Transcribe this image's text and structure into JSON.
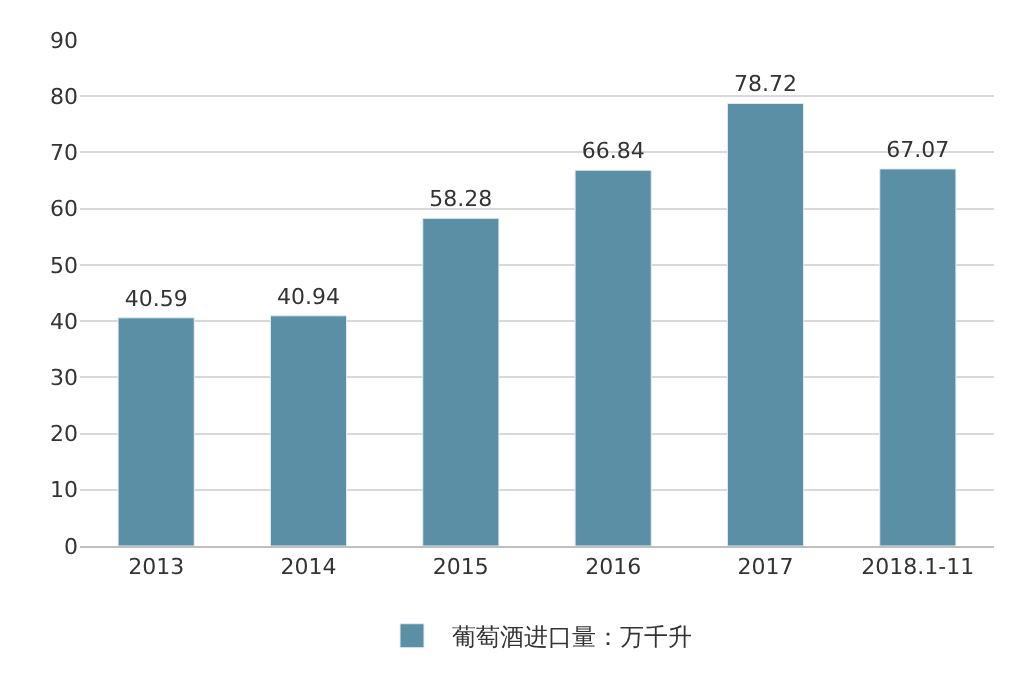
{
  "chart_data": {
    "type": "bar",
    "categories": [
      "2013",
      "2014",
      "2015",
      "2016",
      "2017",
      "2018.1-11"
    ],
    "series": [
      {
        "name": "葡萄酒进口量：万千升",
        "color": "#5b8fa6",
        "values": [
          40.59,
          40.94,
          58.28,
          66.84,
          78.72,
          67.07
        ]
      }
    ],
    "ylim": [
      0,
      90
    ],
    "yticks": [
      0,
      10,
      20,
      30,
      40,
      50,
      60,
      70,
      80,
      90
    ],
    "grid": "y",
    "legend": "bottom",
    "data_labels": true
  }
}
